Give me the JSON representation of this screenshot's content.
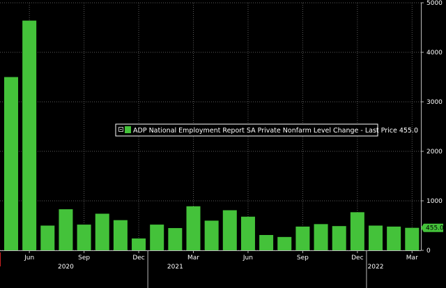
{
  "chart_data": {
    "type": "bar",
    "title": "",
    "xlabel": "",
    "ylabel": "",
    "ylim": [
      0,
      5000
    ],
    "yticks": [
      0,
      1000,
      2000,
      3000,
      4000,
      5000
    ],
    "grid": true,
    "legend_position": "center",
    "colors": {
      "background": "#000000",
      "bar": "#44c23a",
      "grid": "#5c5c5c",
      "axis_text": "#ffffff",
      "last_value_tag": "#44c23a"
    },
    "categories": [
      "2020-05",
      "2020-06",
      "2020-07",
      "2020-08",
      "2020-09",
      "2020-10",
      "2020-11",
      "2020-12",
      "2021-01",
      "2021-02",
      "2021-03",
      "2021-04",
      "2021-05",
      "2021-06",
      "2021-07",
      "2021-08",
      "2021-09",
      "2021-10",
      "2021-11",
      "2021-12",
      "2022-01",
      "2022-02",
      "2022-03"
    ],
    "series": [
      {
        "name": "ADP National Employment Report SA Private Nonfarm Level Change - Last Price 455.0",
        "values": [
          3500,
          4640,
          500,
          830,
          520,
          740,
          610,
          240,
          520,
          450,
          890,
          600,
          810,
          680,
          310,
          270,
          480,
          530,
          490,
          770,
          500,
          480,
          455
        ]
      }
    ],
    "last_value_label": "455.0",
    "x_month_ticks": [
      {
        "category": "2020-06",
        "label": "Jun"
      },
      {
        "category": "2020-09",
        "label": "Sep"
      },
      {
        "category": "2020-12",
        "label": "Dec"
      },
      {
        "category": "2021-03",
        "label": "Mar"
      },
      {
        "category": "2021-06",
        "label": "Jun"
      },
      {
        "category": "2021-09",
        "label": "Sep"
      },
      {
        "category": "2021-12",
        "label": "Dec"
      },
      {
        "category": "2022-03",
        "label": "Mar"
      }
    ],
    "x_year_labels": [
      {
        "category": "2020-08",
        "label": "2020"
      },
      {
        "category": "2021-02",
        "label": "2021"
      },
      {
        "category": "2022-01",
        "label": "2022"
      }
    ],
    "year_separator_after": [
      "2020-12",
      "2021-12"
    ]
  }
}
